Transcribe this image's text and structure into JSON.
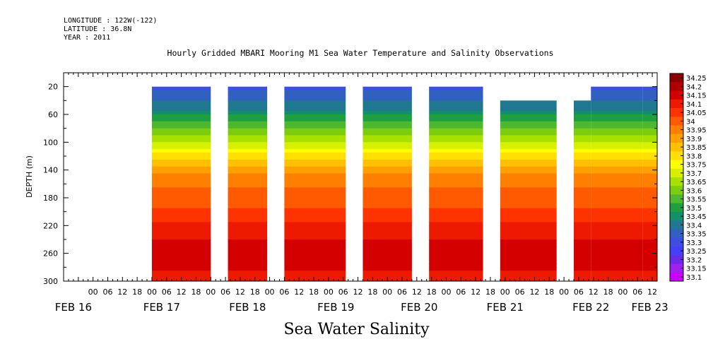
{
  "header": {
    "longitude": "LONGITUDE : 122W(-122)",
    "latitude": "LATITUDE : 36.8N",
    "year": "YEAR : 2011"
  },
  "chart_data": {
    "type": "heatmap",
    "title": "Hourly Gridded MBARI Mooring M1 Sea Water Temperature and Salinity Observations",
    "variable_title": "Sea Water Salinity",
    "ylabel": "DEPTH (m)",
    "xlabel": "",
    "x_range_hours": [
      -36,
      206
    ],
    "x_origin_label": "FEB 17 00",
    "ylim": [
      300,
      0
    ],
    "y_ticks": [
      20,
      60,
      100,
      140,
      180,
      220,
      260,
      300
    ],
    "x_hour_labels": [
      {
        "h": -24,
        "label": "12"
      },
      {
        "h": -30,
        "label": "06"
      },
      {
        "h": -18,
        "label": "18"
      }
    ],
    "x_day_labels": [
      {
        "h": -32,
        "label": "FEB 16"
      },
      {
        "h": 4,
        "label": "FEB 17"
      },
      {
        "h": 39,
        "label": "FEB 18"
      },
      {
        "h": 75,
        "label": "FEB 19"
      },
      {
        "h": 109,
        "label": "FEB 20"
      },
      {
        "h": 144,
        "label": "FEB 21"
      },
      {
        "h": 179,
        "label": "FEB 22"
      },
      {
        "h": 203,
        "label": "FEB 23"
      }
    ],
    "segments": [
      {
        "start": 0,
        "end": 24,
        "top_depth": 20
      },
      {
        "start": 31,
        "end": 47,
        "top_depth": 20
      },
      {
        "start": 54,
        "end": 79,
        "top_depth": 20
      },
      {
        "start": 86,
        "end": 106,
        "top_depth": 20
      },
      {
        "start": 113,
        "end": 135,
        "top_depth": 20
      },
      {
        "start": 142,
        "end": 165,
        "top_depth": 40
      },
      {
        "start": 172,
        "end": 179,
        "top_depth": 40
      },
      {
        "start": 179,
        "end": 200,
        "top_depth": 20
      },
      {
        "start": 200,
        "end": 206,
        "top_depth": 20
      }
    ],
    "depth_profile": [
      {
        "depth": 20,
        "value": 33.34
      },
      {
        "depth": 50,
        "value": 33.42
      },
      {
        "depth": 70,
        "value": 33.55
      },
      {
        "depth": 90,
        "value": 33.65
      },
      {
        "depth": 105,
        "value": 33.72
      },
      {
        "depth": 120,
        "value": 33.82
      },
      {
        "depth": 135,
        "value": 33.9
      },
      {
        "depth": 150,
        "value": 33.98
      },
      {
        "depth": 190,
        "value": 34.03
      },
      {
        "depth": 215,
        "value": 34.1
      },
      {
        "depth": 240,
        "value": 34.15
      },
      {
        "depth": 260,
        "value": 34.2
      },
      {
        "depth": 285,
        "value": 34.15
      },
      {
        "depth": 300,
        "value": 34.12
      }
    ],
    "colorbar": {
      "levels": [
        "34.25",
        "34.2",
        "34.15",
        "34.1",
        "34.05",
        "34",
        "33.95",
        "33.9",
        "33.85",
        "33.8",
        "33.75",
        "33.7",
        "33.65",
        "33.6",
        "33.55",
        "33.5",
        "33.45",
        "33.4",
        "33.35",
        "33.3",
        "33.25",
        "33.2",
        "33.15",
        "33.1"
      ],
      "colors": [
        "#8b0000",
        "#b00000",
        "#d40000",
        "#ee1a00",
        "#ff3300",
        "#ff5a00",
        "#ff8000",
        "#ffa000",
        "#ffc000",
        "#ffe000",
        "#ffff00",
        "#d6f000",
        "#a8e000",
        "#7ccc10",
        "#4db830",
        "#1fa040",
        "#12906a",
        "#207890",
        "#3060c0",
        "#3d4ee0",
        "#4440f8",
        "#6a2ae8",
        "#a020f0",
        "#cc00ff"
      ]
    }
  }
}
